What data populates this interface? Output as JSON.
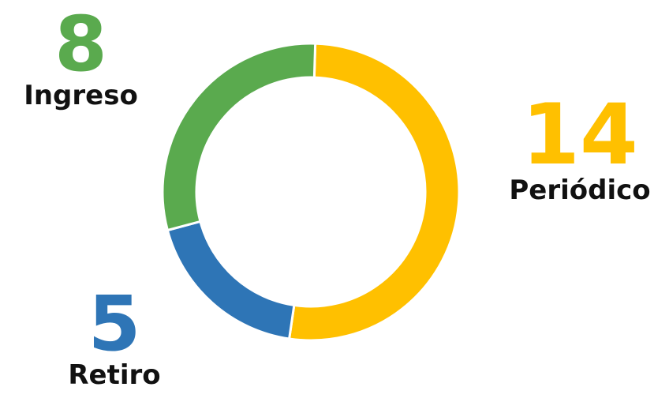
{
  "chart_data": {
    "type": "pie",
    "variant": "donut",
    "categories": [
      "Periódico",
      "Retiro",
      "Ingreso"
    ],
    "values": [
      14,
      5,
      8
    ],
    "colors": [
      "#FFC000",
      "#2E75B6",
      "#5AAA4E"
    ],
    "labels": [
      {
        "name": "Ingreso",
        "value": "8"
      },
      {
        "name": "Periódico",
        "value": "14"
      },
      {
        "name": "Retiro",
        "value": "5"
      }
    ]
  }
}
